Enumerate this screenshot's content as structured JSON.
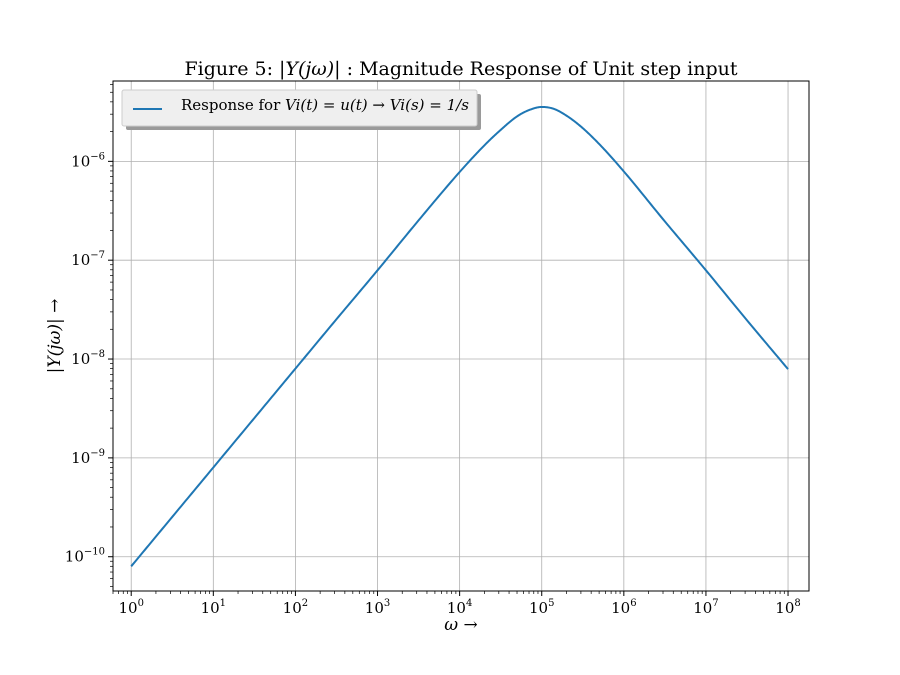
{
  "chart_data": {
    "type": "line",
    "title": {
      "prefix": "Figure 5: ",
      "math": "|Y(jω)|",
      "suffix": " : Magnitude Response of Unit step input"
    },
    "xlabel": "ω →",
    "ylabel": "|Y(jω)| →",
    "x_scale": "log",
    "y_scale": "log",
    "xlim": [
      0.6,
      180000000.0
    ],
    "ylim": [
      4.5e-11,
      6.5e-06
    ],
    "x_ticks": [
      1,
      10,
      100,
      1000,
      10000,
      100000,
      1000000,
      10000000,
      100000000
    ],
    "x_tick_labels": [
      {
        "base": "10",
        "exp": "0"
      },
      {
        "base": "10",
        "exp": "1"
      },
      {
        "base": "10",
        "exp": "2"
      },
      {
        "base": "10",
        "exp": "3"
      },
      {
        "base": "10",
        "exp": "4"
      },
      {
        "base": "10",
        "exp": "5"
      },
      {
        "base": "10",
        "exp": "6"
      },
      {
        "base": "10",
        "exp": "7"
      },
      {
        "base": "10",
        "exp": "8"
      }
    ],
    "y_ticks": [
      1e-10,
      1e-09,
      1e-08,
      1e-07,
      1e-06
    ],
    "y_tick_labels": [
      {
        "base": "10",
        "exp": "−10"
      },
      {
        "base": "10",
        "exp": "−9"
      },
      {
        "base": "10",
        "exp": "−8"
      },
      {
        "base": "10",
        "exp": "−7"
      },
      {
        "base": "10",
        "exp": "−6"
      }
    ],
    "grid": true,
    "legend_position": "top-left",
    "series": [
      {
        "name": "Response for Vi(t) = u(t) → Vi(s) = 1/s",
        "color": "#1f77b4",
        "x": [
          1,
          3,
          10,
          30,
          100,
          300,
          1000,
          3000,
          10000,
          20000,
          30000,
          50000,
          70000,
          100000,
          140000,
          200000,
          300000,
          500000,
          1000000,
          3000000,
          10000000,
          30000000,
          100000000
        ],
        "y": [
          8e-11,
          2.4e-10,
          8e-10,
          2.4e-09,
          8e-09,
          2.4e-08,
          7.9e-08,
          2.4e-07,
          7.8e-07,
          1.45e-06,
          2e-06,
          2.85e-06,
          3.3e-06,
          3.55e-06,
          3.4e-06,
          2.9e-06,
          2.25e-06,
          1.5e-06,
          7.9e-07,
          2.6e-07,
          7.9e-08,
          2.6e-08,
          7.9e-09
        ]
      }
    ]
  },
  "legend": {
    "label_prefix": "Response for ",
    "label_math": "Vi(t) = u(t) → Vi(s) = 1/s"
  }
}
